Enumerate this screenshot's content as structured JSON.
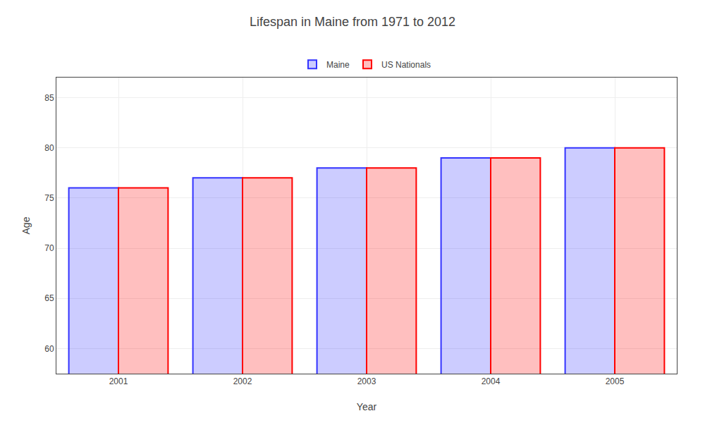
{
  "chart_data": {
    "type": "bar",
    "title": "Lifespan in Maine from 1971 to 2012",
    "x_label": "Year",
    "y_label": "Age",
    "categories": [
      "2001",
      "2002",
      "2003",
      "2004",
      "2005"
    ],
    "series": [
      {
        "name": "Maine",
        "color": "#3333ff",
        "values": [
          76,
          77,
          78,
          79,
          80
        ]
      },
      {
        "name": "US Nationals",
        "color": "#ff0000",
        "values": [
          76,
          77,
          78,
          79,
          80
        ]
      }
    ],
    "ylim": [
      57.5,
      87
    ],
    "yticks": [
      60,
      65,
      70,
      75,
      80,
      85
    ],
    "grid": true,
    "legend": "upper center"
  }
}
